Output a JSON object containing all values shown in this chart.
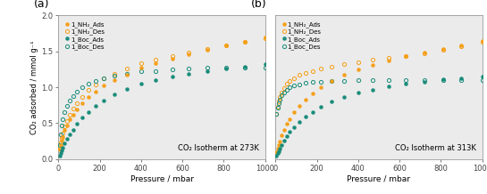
{
  "panel_a_title": "CO₂ Isotherm at 273K",
  "panel_b_title": "CO₂ Isotherm at 313K",
  "xlabel": "Pressure / mbar",
  "ylabel": "CO₂ adsorbed / mmol g⁻¹",
  "ylim": [
    0.0,
    2.0
  ],
  "xlim": [
    0,
    1000
  ],
  "yticks": [
    0.0,
    0.5,
    1.0,
    1.5,
    2.0
  ],
  "xticks": [
    0,
    200,
    400,
    600,
    800,
    1000
  ],
  "color_orange": "#F5A01A",
  "color_teal": "#1A8C7A",
  "legend_labels": [
    "1_NH₂_Ads",
    "1_NH₂_Des",
    "1_Boc_Ads",
    "1_Boc_Des"
  ],
  "panel_labels": [
    "(a)",
    "(b)"
  ],
  "bg_color": "#ebebeb",
  "panel_a": {
    "NH2_Ads_x": [
      5,
      10,
      15,
      20,
      30,
      40,
      55,
      70,
      90,
      115,
      145,
      180,
      220,
      270,
      330,
      400,
      470,
      550,
      630,
      720,
      810,
      900,
      1000
    ],
    "NH2_Ads_y": [
      0.13,
      0.2,
      0.26,
      0.31,
      0.4,
      0.47,
      0.55,
      0.62,
      0.69,
      0.78,
      0.86,
      0.94,
      1.02,
      1.1,
      1.18,
      1.27,
      1.33,
      1.4,
      1.46,
      1.52,
      1.58,
      1.63,
      1.7
    ],
    "NH2_Des_x": [
      5,
      10,
      15,
      20,
      30,
      40,
      55,
      70,
      90,
      115,
      145,
      180,
      220,
      270,
      330,
      400,
      470,
      550,
      630,
      720,
      810,
      900,
      1000
    ],
    "NH2_Des_y": [
      0.15,
      0.23,
      0.3,
      0.36,
      0.45,
      0.53,
      0.62,
      0.7,
      0.78,
      0.87,
      0.96,
      1.04,
      1.12,
      1.19,
      1.26,
      1.33,
      1.38,
      1.44,
      1.49,
      1.54,
      1.59,
      1.63,
      1.68
    ],
    "Boc_Ads_x": [
      5,
      10,
      15,
      20,
      30,
      40,
      55,
      70,
      90,
      115,
      145,
      180,
      220,
      270,
      330,
      400,
      470,
      550,
      630,
      720,
      810,
      900,
      1000
    ],
    "Boc_Ads_y": [
      0.05,
      0.09,
      0.12,
      0.16,
      0.22,
      0.28,
      0.35,
      0.41,
      0.49,
      0.58,
      0.66,
      0.74,
      0.82,
      0.9,
      0.98,
      1.05,
      1.1,
      1.15,
      1.19,
      1.23,
      1.26,
      1.29,
      1.32
    ],
    "Boc_Des_x": [
      5,
      10,
      15,
      20,
      30,
      40,
      55,
      70,
      90,
      115,
      145,
      180,
      220,
      270,
      330,
      400,
      470,
      550,
      630,
      720,
      810,
      900,
      1000
    ],
    "Boc_Des_y": [
      0.2,
      0.35,
      0.47,
      0.56,
      0.66,
      0.74,
      0.82,
      0.88,
      0.94,
      1.0,
      1.05,
      1.09,
      1.13,
      1.16,
      1.19,
      1.22,
      1.23,
      1.25,
      1.26,
      1.27,
      1.27,
      1.28,
      1.28
    ]
  },
  "panel_b": {
    "NH2_Ads_x": [
      5,
      10,
      15,
      20,
      30,
      40,
      55,
      70,
      90,
      115,
      145,
      180,
      220,
      270,
      330,
      400,
      470,
      550,
      630,
      720,
      810,
      900,
      1000
    ],
    "NH2_Ads_y": [
      0.1,
      0.15,
      0.2,
      0.25,
      0.33,
      0.4,
      0.49,
      0.56,
      0.65,
      0.74,
      0.83,
      0.92,
      1.0,
      1.09,
      1.17,
      1.25,
      1.31,
      1.37,
      1.43,
      1.49,
      1.54,
      1.59,
      1.64
    ],
    "NH2_Des_x": [
      5,
      10,
      15,
      20,
      30,
      40,
      55,
      70,
      90,
      115,
      145,
      180,
      220,
      270,
      330,
      400,
      470,
      550,
      630,
      720,
      810,
      900,
      1000
    ],
    "NH2_Des_y": [
      0.63,
      0.73,
      0.8,
      0.86,
      0.93,
      0.99,
      1.05,
      1.09,
      1.13,
      1.17,
      1.2,
      1.23,
      1.26,
      1.29,
      1.32,
      1.35,
      1.38,
      1.41,
      1.44,
      1.47,
      1.52,
      1.57,
      1.63
    ],
    "Boc_Ads_x": [
      5,
      10,
      15,
      20,
      30,
      40,
      55,
      70,
      90,
      115,
      145,
      180,
      220,
      270,
      330,
      400,
      470,
      550,
      630,
      720,
      810,
      900,
      1000
    ],
    "Boc_Ads_y": [
      0.05,
      0.08,
      0.11,
      0.15,
      0.2,
      0.26,
      0.32,
      0.38,
      0.44,
      0.52,
      0.59,
      0.66,
      0.73,
      0.8,
      0.87,
      0.93,
      0.97,
      1.01,
      1.05,
      1.08,
      1.11,
      1.13,
      1.15
    ],
    "Boc_Des_x": [
      5,
      10,
      15,
      20,
      30,
      40,
      55,
      70,
      90,
      115,
      145,
      180,
      220,
      270,
      330,
      400,
      470,
      550,
      630,
      720,
      810,
      900,
      1000
    ],
    "Boc_Des_y": [
      0.63,
      0.72,
      0.78,
      0.83,
      0.89,
      0.93,
      0.97,
      1.0,
      1.02,
      1.04,
      1.06,
      1.07,
      1.08,
      1.09,
      1.09,
      1.1,
      1.1,
      1.1,
      1.1,
      1.1,
      1.1,
      1.1,
      1.1
    ]
  }
}
